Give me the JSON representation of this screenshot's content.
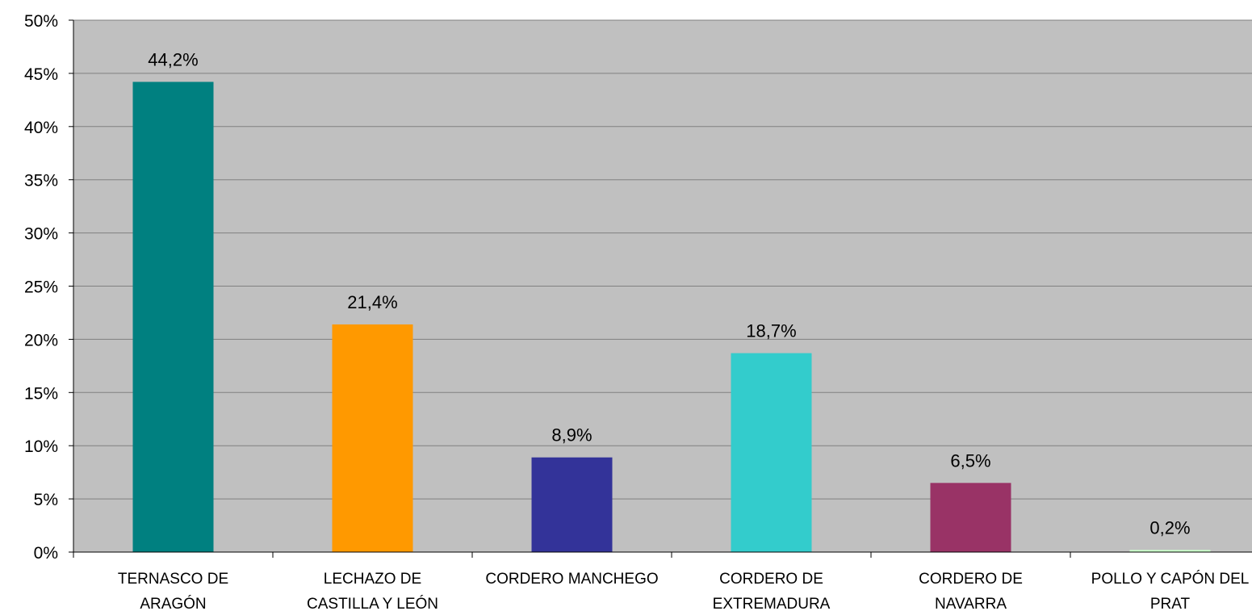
{
  "chart_data": {
    "type": "bar",
    "categories": [
      [
        "TERNASCO DE",
        "ARAGÓN"
      ],
      [
        "LECHAZO DE",
        "CASTILLA Y LEÓN"
      ],
      [
        "CORDERO MANCHEGO"
      ],
      [
        "CORDERO DE",
        "EXTREMADURA"
      ],
      [
        "CORDERO DE",
        "NAVARRA"
      ],
      [
        "POLLO Y CAPÓN DEL",
        "PRAT"
      ]
    ],
    "values": [
      44.2,
      21.4,
      8.9,
      18.7,
      6.5,
      0.2
    ],
    "data_labels": [
      "44,2%",
      "21,4%",
      "8,9%",
      "18,7%",
      "6,5%",
      "0,2%"
    ],
    "colors": [
      "#008080",
      "#ff9900",
      "#333399",
      "#33cccc",
      "#993366",
      "#ccffcc"
    ],
    "ylim": [
      0,
      50
    ],
    "yticks": [
      0,
      5,
      10,
      15,
      20,
      25,
      30,
      35,
      40,
      45,
      50
    ],
    "ytick_labels": [
      "0%",
      "5%",
      "10%",
      "15%",
      "20%",
      "25%",
      "30%",
      "35%",
      "40%",
      "45%",
      "50%"
    ],
    "grid": true,
    "plot_background": "#c0c0c0",
    "grid_color": "#808080",
    "title": "",
    "xlabel": "",
    "ylabel": ""
  }
}
